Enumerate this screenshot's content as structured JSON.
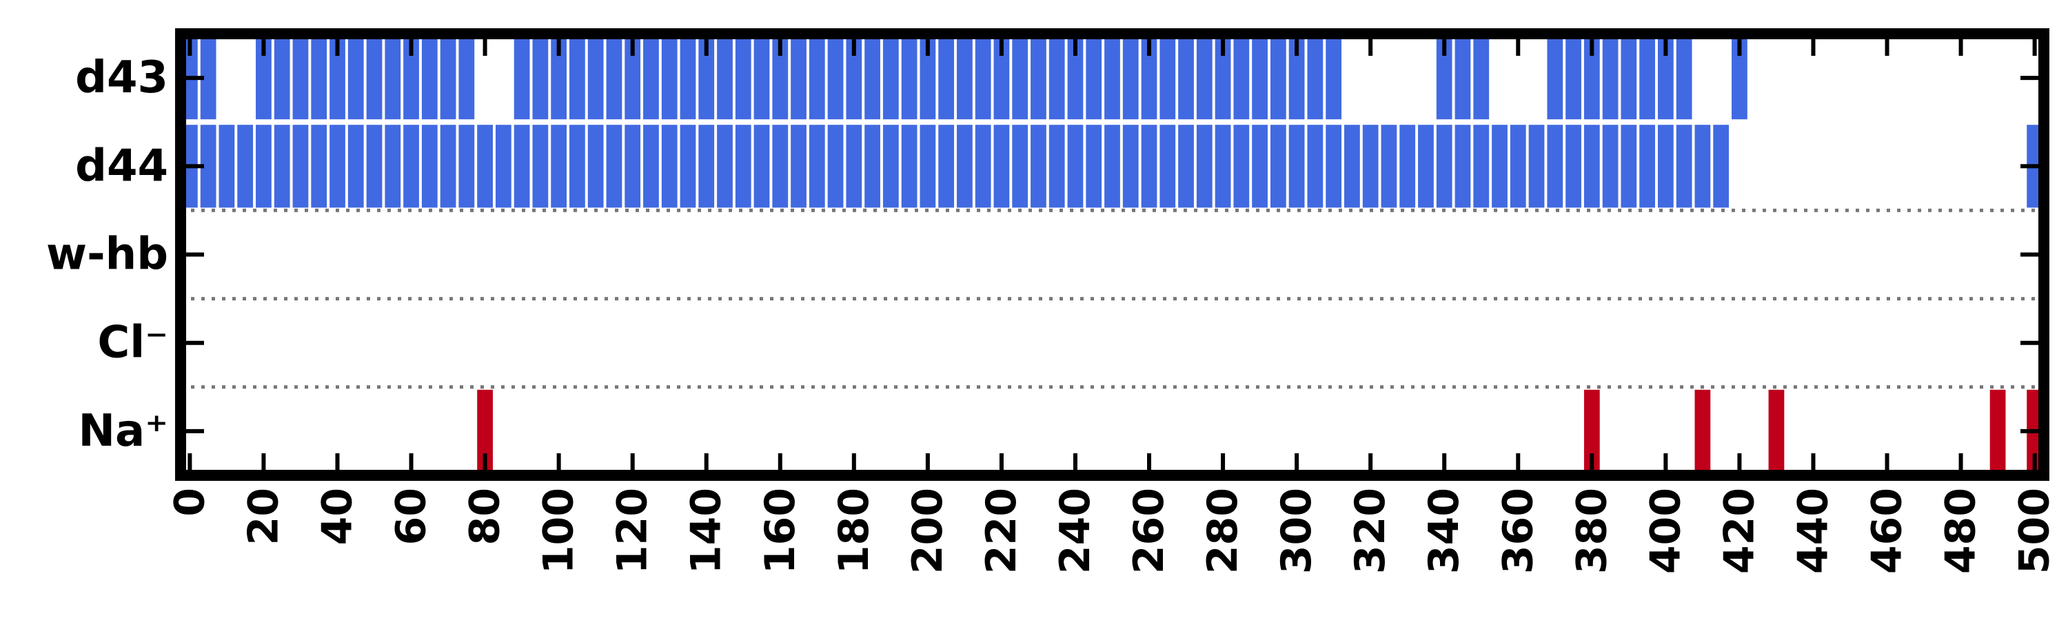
{
  "chart_data": {
    "type": "heatmap",
    "title": "",
    "xlabel": "",
    "ylabel": "",
    "xlim": [
      -2.5,
      502.5
    ],
    "bin_width": 5,
    "grid": false,
    "rows": [
      {
        "label": "d43",
        "color": "#4169e1",
        "spans": [
          [
            0,
            5
          ],
          [
            20,
            75
          ],
          [
            90,
            310
          ],
          [
            340,
            345
          ],
          [
            345,
            350
          ],
          [
            370,
            405
          ],
          [
            420,
            420
          ]
        ],
        "group": "contacts"
      },
      {
        "label": "d44",
        "color": "#4169e1",
        "spans": [
          [
            0,
            415
          ],
          [
            500,
            500
          ]
        ],
        "group": "contacts"
      },
      {
        "label": "w-hb",
        "color": "#4169e1",
        "spans": [],
        "group": "water"
      },
      {
        "label": "Cl⁻",
        "color": "#4169e1",
        "spans": [],
        "group": "chloride"
      },
      {
        "label": "Na⁺",
        "color": "#c0001a",
        "spans": [
          [
            80,
            80
          ],
          [
            380,
            380
          ],
          [
            410,
            410
          ],
          [
            430,
            430
          ],
          [
            490,
            490
          ],
          [
            500,
            500
          ]
        ],
        "group": "sodium"
      }
    ],
    "x_ticks": [
      0,
      20,
      40,
      60,
      80,
      100,
      120,
      140,
      160,
      180,
      200,
      220,
      240,
      260,
      280,
      300,
      320,
      340,
      360,
      380,
      400,
      420,
      440,
      460,
      480,
      500
    ],
    "x_tick_labels": [
      "0",
      "20",
      "40",
      "60",
      "80",
      "100",
      "120",
      "140",
      "160",
      "180",
      "200",
      "220",
      "240",
      "260",
      "280",
      "300",
      "320",
      "340",
      "360",
      "380",
      "400",
      "420",
      "440",
      "460",
      "480",
      "500"
    ],
    "separators_after_rows": [
      "d44",
      "w-hb",
      "Cl⁻"
    ]
  }
}
